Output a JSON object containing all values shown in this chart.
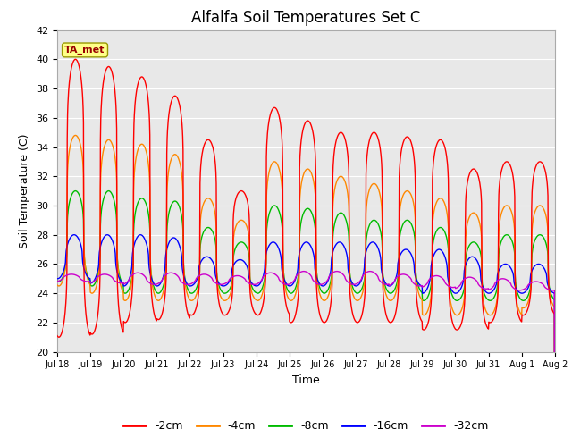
{
  "title": "Alfalfa Soil Temperatures Set C",
  "xlabel": "Time",
  "ylabel": "Soil Temperature (C)",
  "ylim": [
    20,
    42
  ],
  "yticks": [
    20,
    22,
    24,
    26,
    28,
    30,
    32,
    34,
    36,
    38,
    40,
    42
  ],
  "bg_color": "#e8e8e8",
  "line_colors": {
    "-2cm": "#ff0000",
    "-4cm": "#ff8800",
    "-8cm": "#00bb00",
    "-16cm": "#0000ff",
    "-32cm": "#cc00cc"
  },
  "legend_labels": [
    "-2cm",
    "-4cm",
    "-8cm",
    "-16cm",
    "-32cm"
  ],
  "ta_met_box_color": "#ffff88",
  "ta_met_text_color": "#990000",
  "annotation_text": "TA_met",
  "title_fontsize": 12,
  "n_days": 15,
  "pts_per_day": 96
}
